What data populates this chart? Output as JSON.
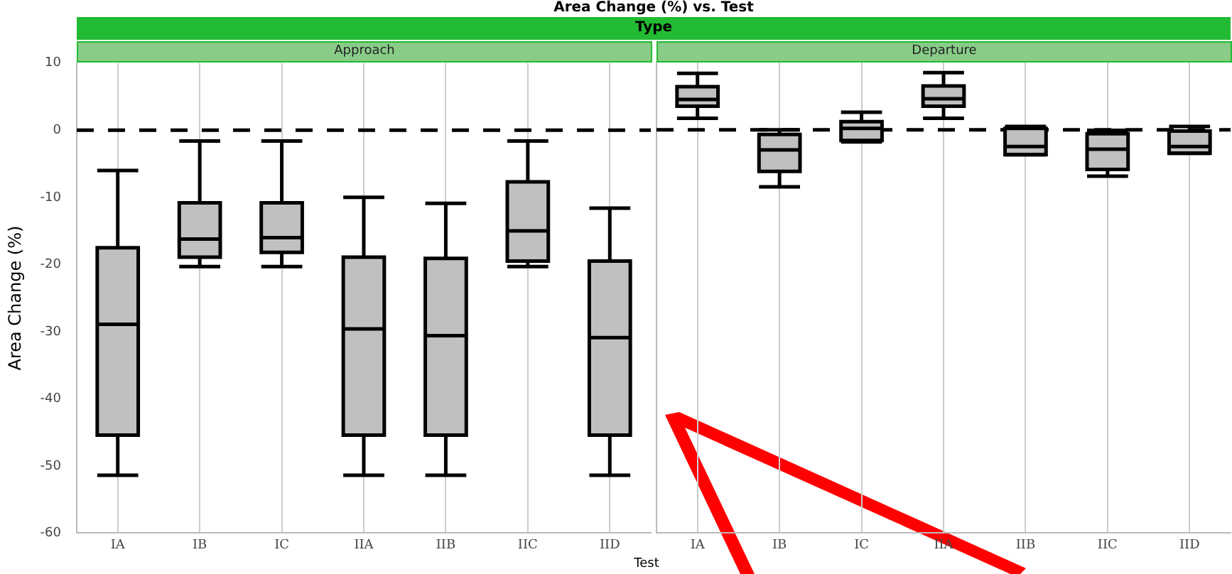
{
  "chart_data": [
    {
      "type": "box",
      "title": "Area Change (%) vs. Test",
      "annotations": [
        "Type"
      ],
      "subtitle": "Approach",
      "xlabel": "Test",
      "ylabel": "Area Change (%)",
      "categories": [
        "IA",
        "IB",
        "IC",
        "IIA",
        "IIB",
        "IIC",
        "IID"
      ],
      "color": "#c0c0c0",
      "ylim": [
        -60,
        10
      ],
      "yticks": [
        -60,
        -50,
        -40,
        -30,
        -20,
        -10,
        0,
        10
      ],
      "grid": "x",
      "ref_lines": [
        {
          "axis": "y",
          "value": 0,
          "color": "#000000",
          "line_style": "dashed"
        }
      ],
      "boxes": [
        {
          "low": -51.4,
          "q1": -45.4,
          "median": -28.9,
          "q3": -17.5,
          "high": -6.0
        },
        {
          "low": -20.3,
          "q1": -18.9,
          "median": -16.2,
          "q3": -10.8,
          "high": -1.6
        },
        {
          "low": -20.3,
          "q1": -18.2,
          "median": -16.0,
          "q3": -10.8,
          "high": -1.6
        },
        {
          "low": -51.4,
          "q1": -45.4,
          "median": -29.6,
          "q3": -18.9,
          "high": -10.0
        },
        {
          "low": -51.4,
          "q1": -45.4,
          "median": -30.6,
          "q3": -19.1,
          "high": -10.9
        },
        {
          "low": -20.3,
          "q1": -19.5,
          "median": -15.0,
          "q3": -7.7,
          "high": -1.6
        },
        {
          "low": -51.4,
          "q1": -45.4,
          "median": -30.9,
          "q3": -19.5,
          "high": -11.6
        }
      ]
    },
    {
      "type": "box",
      "subtitle": "Departure",
      "categories": [
        "IA",
        "IB",
        "IC",
        "IIA",
        "IIB",
        "IIC",
        "IID"
      ],
      "color": "#c0c0c0",
      "ylim": [
        -60,
        10
      ],
      "yticks": [
        -60,
        -50,
        -40,
        -30,
        -20,
        -10,
        0,
        10
      ],
      "tick_labels": "x",
      "grid": "x",
      "ref_lines": [
        {
          "axis": "y",
          "value": 0,
          "color": "#000000",
          "line_style": "dashed"
        }
      ],
      "boxes": [
        {
          "low": 1.7,
          "q1": 3.5,
          "median": 4.5,
          "q3": 6.4,
          "high": 8.4
        },
        {
          "low": -8.5,
          "q1": -6.2,
          "median": -3.0,
          "q3": -0.7,
          "high": 0.0
        },
        {
          "low": -1.8,
          "q1": -1.6,
          "median": 0.2,
          "q3": 1.2,
          "high": 2.6
        },
        {
          "low": 1.7,
          "q1": 3.5,
          "median": 4.6,
          "q3": 6.5,
          "high": 8.5
        },
        {
          "low": -3.7,
          "q1": -3.7,
          "median": -2.5,
          "q3": 0.2,
          "high": 0.5
        },
        {
          "low": -6.9,
          "q1": -5.9,
          "median": -2.9,
          "q3": -0.6,
          "high": -0.1
        },
        {
          "low": -3.5,
          "q1": -3.5,
          "median": -2.5,
          "q3": -0.2,
          "high": 0.5
        }
      ]
    }
  ]
}
